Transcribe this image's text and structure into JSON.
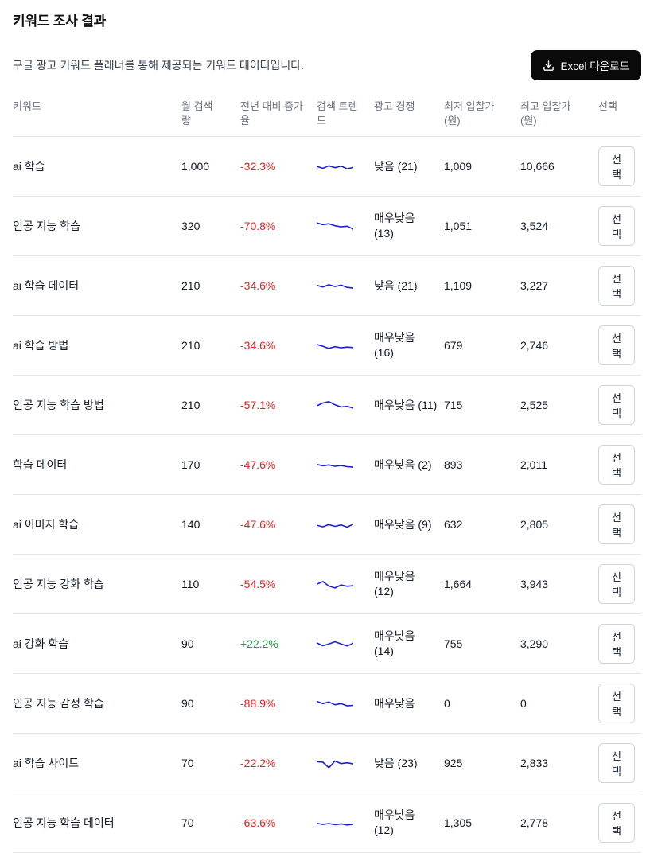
{
  "page": {
    "title": "키워드 조사 결과",
    "subtitle": "구글 광고 키워드 플래너를 통해 제공되는 키워드 데이터입니다.",
    "excel_button_label": "Excel 다운로드"
  },
  "table": {
    "columns": [
      "키워드",
      "월 검색\n량",
      "전년 대비 증가\n율",
      "검색 트렌\n드",
      "광고 경쟁",
      "최저 입찰가\n(원)",
      "최고 입찰가\n(원)",
      "선택"
    ],
    "select_label": "선택",
    "rows": [
      {
        "keyword": "ai 학습",
        "volume": "1,000",
        "yoy": "-32.3%",
        "trend": [
          50,
          68,
          45,
          62,
          48,
          72,
          60
        ],
        "competition": "낮음 (21)",
        "min_bid": "1,009",
        "max_bid": "10,666"
      },
      {
        "keyword": "인공 지능 학습",
        "volume": "320",
        "yoy": "-70.8%",
        "trend": [
          22,
          38,
          30,
          48,
          58,
          52,
          78
        ],
        "competition": "매우낮음\n(13)",
        "min_bid": "1,051",
        "max_bid": "3,524"
      },
      {
        "keyword": "ai 학습 데이터",
        "volume": "210",
        "yoy": "-34.6%",
        "trend": [
          48,
          62,
          42,
          58,
          46,
          66,
          72
        ],
        "competition": "낮음 (21)",
        "min_bid": "1,109",
        "max_bid": "3,227"
      },
      {
        "keyword": "ai 학습 방법",
        "volume": "210",
        "yoy": "-34.6%",
        "trend": [
          42,
          58,
          78,
          62,
          72,
          66,
          70
        ],
        "competition": "매우낮음\n(16)",
        "min_bid": "679",
        "max_bid": "2,746"
      },
      {
        "keyword": "인공 지능 학습 방법",
        "volume": "210",
        "yoy": "-57.1%",
        "trend": [
          58,
          32,
          20,
          48,
          68,
          62,
          78
        ],
        "competition": "매우낮음 (11)",
        "min_bid": "715",
        "max_bid": "2,525"
      },
      {
        "keyword": "학습 데이터",
        "volume": "170",
        "yoy": "-47.6%",
        "trend": [
          48,
          60,
          52,
          64,
          58,
          68,
          72
        ],
        "competition": "매우낮음 (2)",
        "min_bid": "893",
        "max_bid": "2,011"
      },
      {
        "keyword": "ai 이미지 학습",
        "volume": "140",
        "yoy": "-47.6%",
        "trend": [
          58,
          72,
          52,
          68,
          55,
          75,
          48
        ],
        "competition": "매우낮음 (9)",
        "min_bid": "632",
        "max_bid": "2,805"
      },
      {
        "keyword": "인공 지능 강화 학습",
        "volume": "110",
        "yoy": "-54.5%",
        "trend": [
          52,
          28,
          68,
          85,
          58,
          70,
          64
        ],
        "competition": "매우낮음\n(12)",
        "min_bid": "1,664",
        "max_bid": "3,943"
      },
      {
        "keyword": "ai 강화 학습",
        "volume": "90",
        "yoy": "+22.2%",
        "trend": [
          42,
          68,
          52,
          32,
          52,
          70,
          45
        ],
        "competition": "매우낮음\n(14)",
        "min_bid": "755",
        "max_bid": "3,290"
      },
      {
        "keyword": "인공 지능 감정 학습",
        "volume": "90",
        "yoy": "-88.9%",
        "trend": [
          32,
          52,
          38,
          62,
          52,
          72,
          68
        ],
        "competition": "매우낮음",
        "min_bid": "0",
        "max_bid": "0"
      },
      {
        "keyword": "ai 학습 사이트",
        "volume": "70",
        "yoy": "-22.2%",
        "trend": [
          38,
          42,
          92,
          32,
          55,
          48,
          58
        ],
        "competition": "낮음 (23)",
        "min_bid": "925",
        "max_bid": "2,833"
      },
      {
        "keyword": "인공 지능 학습 데이터",
        "volume": "70",
        "yoy": "-63.6%",
        "trend": [
          55,
          65,
          57,
          67,
          60,
          70,
          64
        ],
        "competition": "매우낮음\n(12)",
        "min_bid": "1,305",
        "max_bid": "2,778"
      }
    ]
  },
  "colors": {
    "negative": "#dc2626",
    "positive": "#16a34a",
    "sparkline": "#1b1fd1",
    "excel_button_bg": "#0a0a0a"
  }
}
